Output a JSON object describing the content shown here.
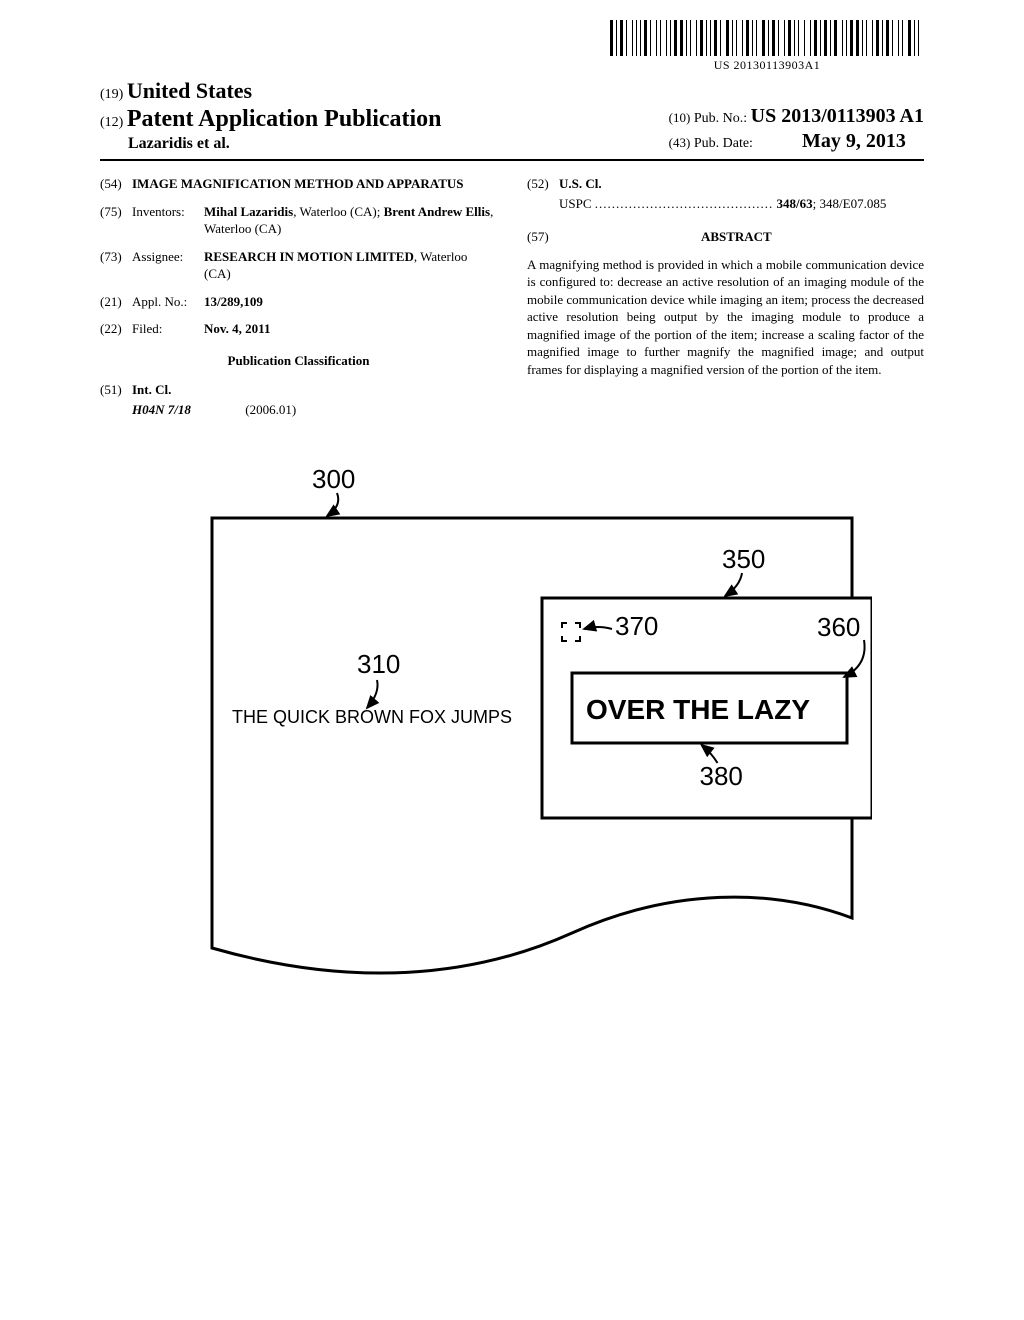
{
  "barcode": {
    "text": "US 20130113903A1",
    "bars": [
      3,
      1,
      1,
      1,
      3,
      1,
      1,
      3,
      1,
      1,
      1,
      1,
      1,
      1,
      3,
      1,
      1,
      3,
      1,
      1,
      1,
      3,
      1,
      1,
      1,
      1,
      3,
      1,
      3,
      1,
      1,
      1,
      1,
      3,
      1,
      1,
      3,
      1,
      1,
      1,
      1,
      1,
      3,
      1,
      1,
      3,
      3,
      1,
      1,
      1,
      1,
      3,
      1,
      1,
      3,
      1,
      1,
      1,
      1,
      3,
      3,
      1,
      1,
      1,
      3,
      1,
      1,
      3,
      1,
      1,
      3,
      1,
      1,
      1,
      1,
      3,
      1,
      3,
      1,
      1,
      3,
      1,
      1,
      1,
      3,
      1,
      1,
      1,
      3,
      3,
      1,
      1,
      1,
      1,
      3,
      1,
      3,
      1,
      1,
      1,
      1,
      3,
      1,
      1,
      3,
      1,
      1,
      1,
      3,
      1,
      1,
      3,
      1,
      1,
      1,
      3,
      3,
      1,
      1,
      1,
      1,
      3
    ]
  },
  "header": {
    "country_code": "(19)",
    "country": "United States",
    "pub_code": "(12)",
    "pub_type": "Patent Application Publication",
    "authors": "Lazaridis et al.",
    "pubno_code": "(10)",
    "pubno_label": "Pub. No.:",
    "pubno": "US 2013/0113903 A1",
    "pubdate_code": "(43)",
    "pubdate_label": "Pub. Date:",
    "pubdate": "May 9, 2013"
  },
  "left_col": {
    "title_code": "(54)",
    "title": "IMAGE MAGNIFICATION METHOD AND APPARATUS",
    "inventors_code": "(75)",
    "inventors_label": "Inventors:",
    "inventors_body_1a": "Mihal Lazaridis",
    "inventors_body_1b": ", Waterloo (CA); ",
    "inventors_body_2a": "Brent Andrew Ellis",
    "inventors_body_2b": ", Waterloo (CA)",
    "assignee_code": "(73)",
    "assignee_label": "Assignee:",
    "assignee_name": "RESEARCH IN MOTION LIMITED",
    "assignee_loc": ", Waterloo (CA)",
    "applno_code": "(21)",
    "applno_label": "Appl. No.:",
    "applno": "13/289,109",
    "filed_code": "(22)",
    "filed_label": "Filed:",
    "filed": "Nov. 4, 2011",
    "pub_class_heading": "Publication Classification",
    "intcl_code": "(51)",
    "intcl_label": "Int. Cl.",
    "intcl_value": "H04N 7/18",
    "intcl_year": "(2006.01)"
  },
  "right_col": {
    "uscl_code": "(52)",
    "uscl_label": "U.S. Cl.",
    "uscl_prefix": "USPC",
    "uscl_dots": "..........................................",
    "uscl_main": "348/63",
    "uscl_rest": "; 348/E07.085",
    "abstract_code": "(57)",
    "abstract_heading": "ABSTRACT",
    "abstract_text": "A magnifying method is provided in which a mobile communication device is configured to: decrease an active resolution of an imaging module of the mobile communication device while imaging an item; process the decreased active resolution being output by the imaging module to produce a magnified image of the portion of the item; increase a scaling factor of the magnified image to further magnify the magnified image; and output frames for displaying a magnified version of the portion of the item."
  },
  "figure": {
    "ref_300": "300",
    "ref_310": "310",
    "ref_350": "350",
    "ref_360": "360",
    "ref_370": "370",
    "ref_380": "380",
    "text_left": "THE QUICK BROWN FOX JUMPS",
    "text_magnified": "OVER THE LAZY",
    "colors": {
      "stroke": "#000000",
      "background": "#ffffff"
    },
    "stroke_width": 3,
    "font_family": "Arial, Helvetica, sans-serif"
  }
}
